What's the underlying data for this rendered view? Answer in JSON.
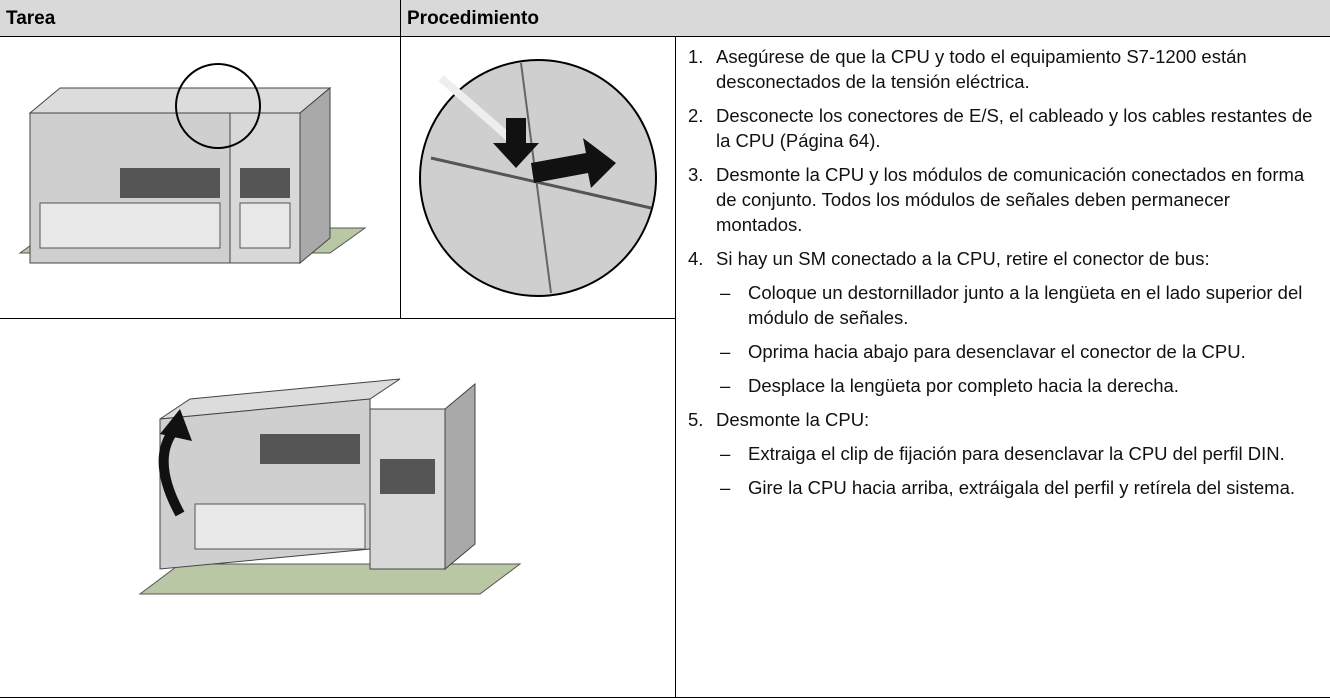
{
  "header": {
    "tarea": "Tarea",
    "procedimiento": "Procedimiento"
  },
  "steps": [
    {
      "number": "1.",
      "text": "Asegúrese de que la CPU y todo el equipamiento S7-1200 están desconectados de la tensión eléctrica.",
      "substeps": []
    },
    {
      "number": "2.",
      "text": "Desconecte los conectores de E/S, el cableado y los cables restantes de la CPU (Página 64).",
      "substeps": []
    },
    {
      "number": "3.",
      "text": "Desmonte la CPU y los módulos de comunicación conectados en forma de conjunto. Todos los módulos de señales deben permanecer montados.",
      "substeps": []
    },
    {
      "number": "4.",
      "text": "Si hay un SM conectado a la CPU, retire el conector de bus:",
      "substeps": [
        {
          "marker": "–",
          "text": "Coloque un destornillador junto a la lengüeta en el lado superior del módulo de señales."
        },
        {
          "marker": "–",
          "text": "Oprima hacia abajo para desenclavar el conector de la CPU."
        },
        {
          "marker": "–",
          "text": "Desplace la lengüeta por completo hacia la derecha."
        }
      ]
    },
    {
      "number": "5.",
      "text": "Desmonte la CPU:",
      "substeps": [
        {
          "marker": "–",
          "text": "Extraiga el clip de fijación para desenclavar la CPU del perfil DIN."
        },
        {
          "marker": "–",
          "text": "Gire la CPU hacia arriba, extráigala del perfil y retírela del sistema."
        }
      ]
    }
  ]
}
